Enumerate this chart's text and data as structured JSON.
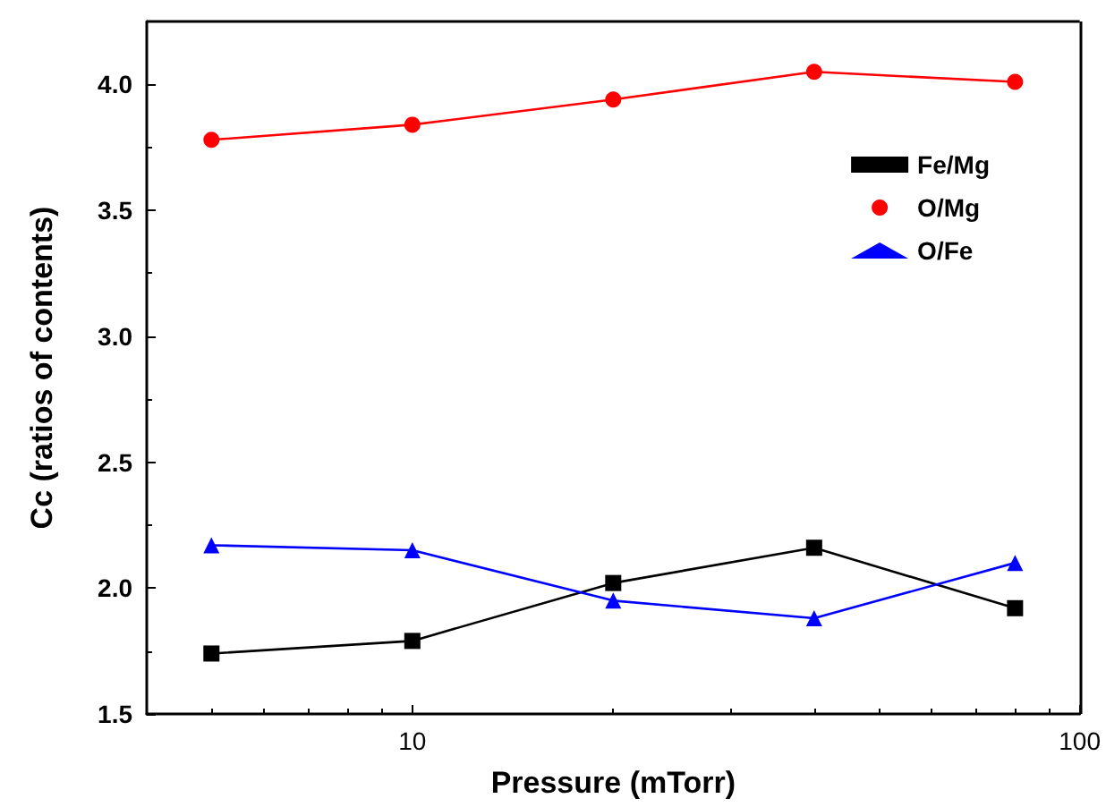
{
  "chart_data": {
    "type": "line",
    "xlabel": "Pressure (mTorr)",
    "ylabel": "Cc (ratios of contents)",
    "log": "x",
    "xlim": [
      4,
      100
    ],
    "xticks": [
      10,
      100
    ],
    "ylim": [
      1.5,
      4.25
    ],
    "yticks": [
      1.5,
      {
        "value": 2,
        "label": "2.0"
      },
      2.5,
      {
        "value": 3,
        "label": "3.0"
      },
      3.5,
      {
        "value": 4,
        "label": "4.0"
      }
    ],
    "x": [
      5,
      10,
      20,
      40,
      80
    ],
    "grid": false,
    "legend": "top right",
    "series": [
      {
        "name": "Fe/Mg",
        "color": "#000000",
        "marker": "square",
        "values": [
          1.74,
          1.79,
          2.02,
          2.16,
          1.92
        ]
      },
      {
        "name": "O/Mg",
        "color": "#ff0000",
        "marker": "circle",
        "values": [
          3.78,
          3.84,
          3.94,
          4.05,
          4.01
        ]
      },
      {
        "name": "O/Fe",
        "color": "#0000ff",
        "marker": "triangle",
        "values": [
          2.17,
          2.15,
          1.95,
          1.88,
          2.1
        ]
      }
    ]
  }
}
